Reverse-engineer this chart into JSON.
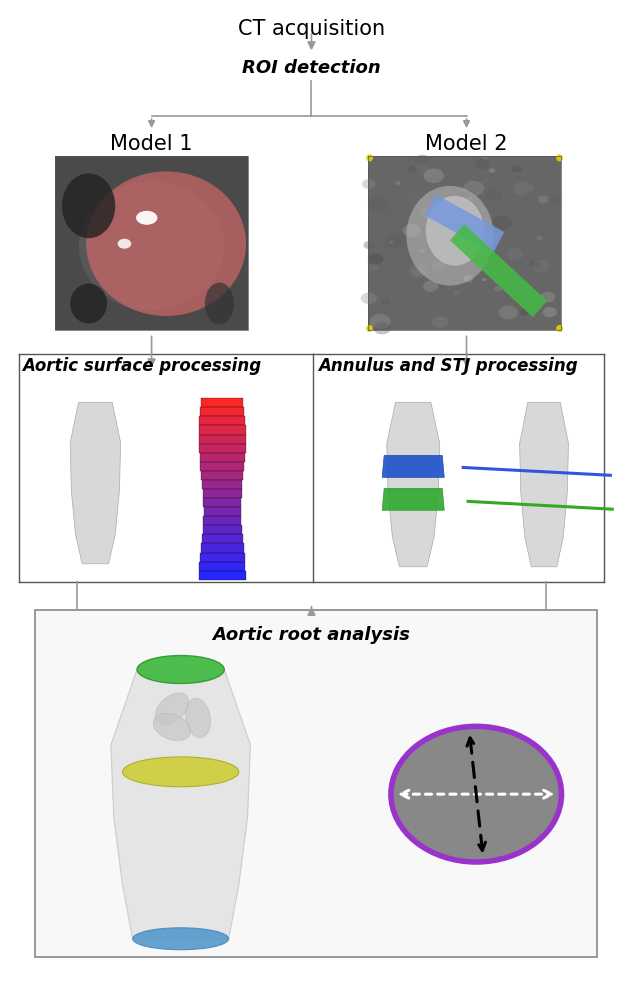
{
  "title": "CT acquisition",
  "arrow_color": "#888888",
  "roi_text": "ROI detection",
  "model1_text": "Model 1",
  "model2_text": "Model 2",
  "aortic_surface_text": "Aortic surface processing",
  "annulus_stj_text": "Annulus and STJ processing",
  "aortic_root_text": "Aortic root analysis",
  "bg_color": "#ffffff",
  "italic_fontsize": 13,
  "title_fontsize": 15,
  "model_fontsize": 15
}
